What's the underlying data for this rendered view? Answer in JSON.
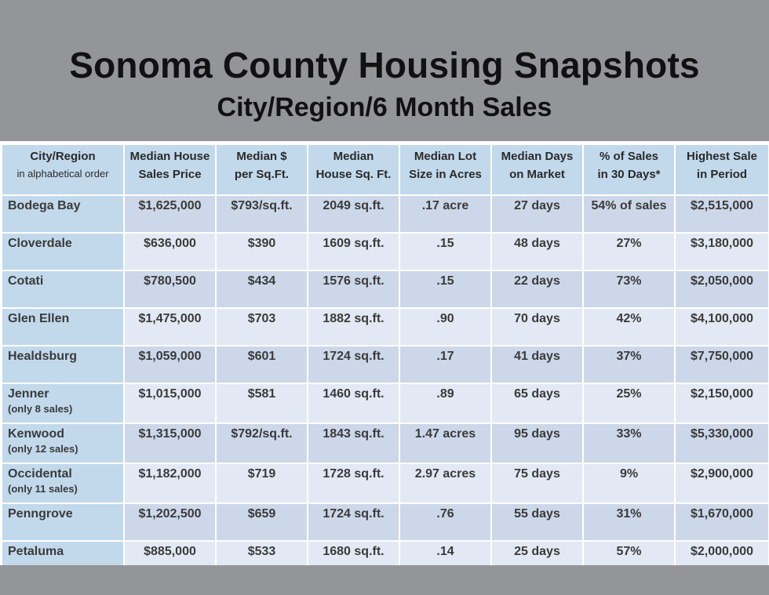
{
  "title": "Sonoma County Housing Snapshots",
  "subtitle": "City/Region/6 Month Sales",
  "colors": {
    "background": "#949598",
    "header_cell": "#c2d9ec",
    "row_dark": "#ccd8e9",
    "row_light": "#e3e9f4"
  },
  "columns": [
    {
      "line1": "City/Region",
      "line2": "in alphabetical order"
    },
    {
      "line1": "Median House",
      "line2": "Sales Price"
    },
    {
      "line1": "Median $",
      "line2": "per Sq.Ft."
    },
    {
      "line1": "Median",
      "line2": "House Sq. Ft."
    },
    {
      "line1": "Median Lot",
      "line2": "Size in Acres"
    },
    {
      "line1": "Median Days",
      "line2": "on Market"
    },
    {
      "line1": "% of Sales",
      "line2": "in 30 Days*"
    },
    {
      "line1": "Highest Sale",
      "line2": "in Period"
    }
  ],
  "rows": [
    {
      "city": "Bodega Bay",
      "note": "",
      "price": "$1,625,000",
      "per_sqft": "$793/sq.ft.",
      "sqft": "2049 sq.ft.",
      "lot": ".17 acre",
      "days": "27 days",
      "pct30": "54% of sales",
      "highest": "$2,515,000"
    },
    {
      "city": "Cloverdale",
      "note": "",
      "price": "$636,000",
      "per_sqft": "$390",
      "sqft": "1609 sq.ft.",
      "lot": ".15",
      "days": "48 days",
      "pct30": "27%",
      "highest": "$3,180,000"
    },
    {
      "city": "Cotati",
      "note": "",
      "price": "$780,500",
      "per_sqft": "$434",
      "sqft": "1576 sq.ft.",
      "lot": ".15",
      "days": "22 days",
      "pct30": "73%",
      "highest": "$2,050,000"
    },
    {
      "city": "Glen Ellen",
      "note": "",
      "price": "$1,475,000",
      "per_sqft": "$703",
      "sqft": "1882 sq.ft.",
      "lot": ".90",
      "days": "70 days",
      "pct30": "42%",
      "highest": "$4,100,000"
    },
    {
      "city": "Healdsburg",
      "note": "",
      "price": "$1,059,000",
      "per_sqft": "$601",
      "sqft": "1724 sq.ft.",
      "lot": ".17",
      "days": "41 days",
      "pct30": "37%",
      "highest": "$7,750,000"
    },
    {
      "city": "Jenner",
      "note": "(only 8 sales)",
      "price": "$1,015,000",
      "per_sqft": "$581",
      "sqft": "1460 sq.ft.",
      "lot": ".89",
      "days": "65 days",
      "pct30": "25%",
      "highest": "$2,150,000"
    },
    {
      "city": "Kenwood",
      "note": "(only 12 sales)",
      "price": "$1,315,000",
      "per_sqft": "$792/sq.ft.",
      "sqft": "1843 sq.ft.",
      "lot": "1.47 acres",
      "days": "95 days",
      "pct30": "33%",
      "highest": "$5,330,000"
    },
    {
      "city": "Occidental",
      "note": "(only 11 sales)",
      "price": "$1,182,000",
      "per_sqft": "$719",
      "sqft": "1728 sq.ft.",
      "lot": "2.97 acres",
      "days": "75 days",
      "pct30": "9%",
      "highest": "$2,900,000"
    },
    {
      "city": "Penngrove",
      "note": "",
      "price": "$1,202,500",
      "per_sqft": "$659",
      "sqft": "1724 sq.ft.",
      "lot": ".76",
      "days": "55 days",
      "pct30": "31%",
      "highest": "$1,670,000"
    },
    {
      "city": "Petaluma",
      "note": "",
      "price": "$885,000",
      "per_sqft": "$533",
      "sqft": "1680 sq.ft.",
      "lot": ".14",
      "days": "25 days",
      "pct30": "57%",
      "highest": "$2,000,000"
    }
  ]
}
